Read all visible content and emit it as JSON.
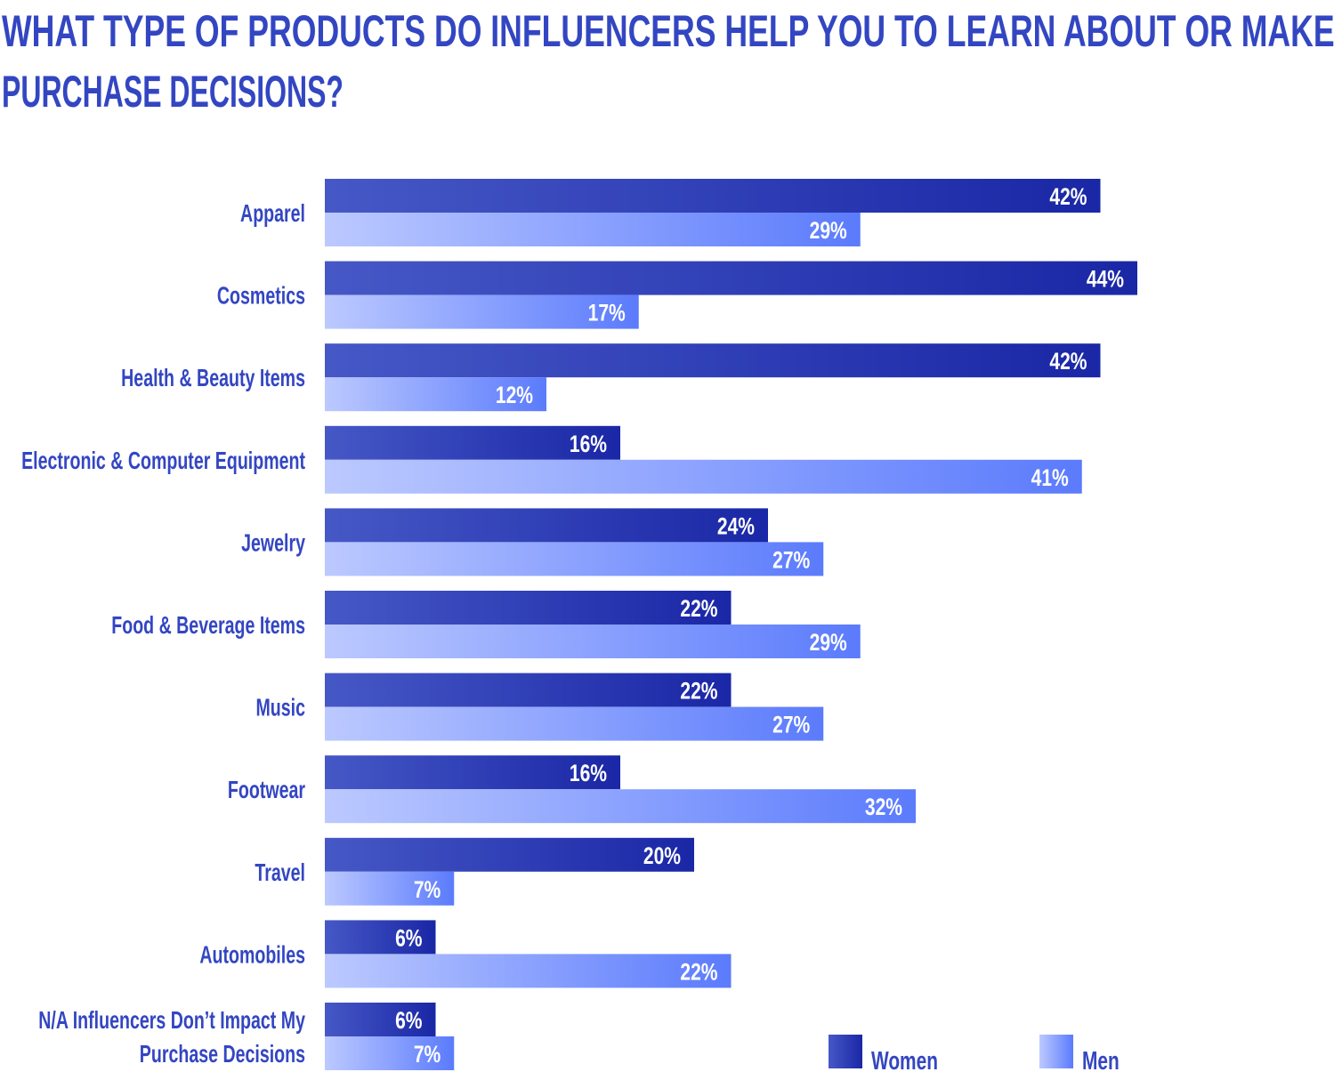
{
  "chart_data": {
    "type": "bar",
    "orientation": "horizontal",
    "title": "WHAT TYPE OF PRODUCTS DO INFLUENCERS HELP YOU TO LEARN ABOUT OR MAKE\nPURCHASE DECISIONS?",
    "categories": [
      "Apparel",
      "Cosmetics",
      "Health & Beauty Items",
      "Electronic & Computer Equipment",
      "Jewelry",
      "Food & Beverage Items",
      "Music",
      "Footwear",
      "Travel",
      "Automobiles",
      "N/A Influencers Don’t Impact My\nPurchase Decisions"
    ],
    "series": [
      {
        "name": "Women",
        "color": "#1a27a6",
        "values": [
          42,
          44,
          42,
          16,
          24,
          22,
          22,
          16,
          20,
          6,
          6
        ],
        "value_labels": [
          "42%",
          "44%",
          "42%",
          "16%",
          "24%",
          "22%",
          "22%",
          "16%",
          "20%",
          "6%",
          "6%"
        ]
      },
      {
        "name": "Men",
        "color": "#5b7bfc",
        "values": [
          29,
          17,
          12,
          41,
          27,
          29,
          27,
          32,
          7,
          22,
          7
        ],
        "value_labels": [
          "29%",
          "17%",
          "12%",
          "41%",
          "27%",
          "29%",
          "27%",
          "32%",
          "7%",
          "22%",
          "7%"
        ]
      }
    ],
    "legend": "bottom-right"
  }
}
